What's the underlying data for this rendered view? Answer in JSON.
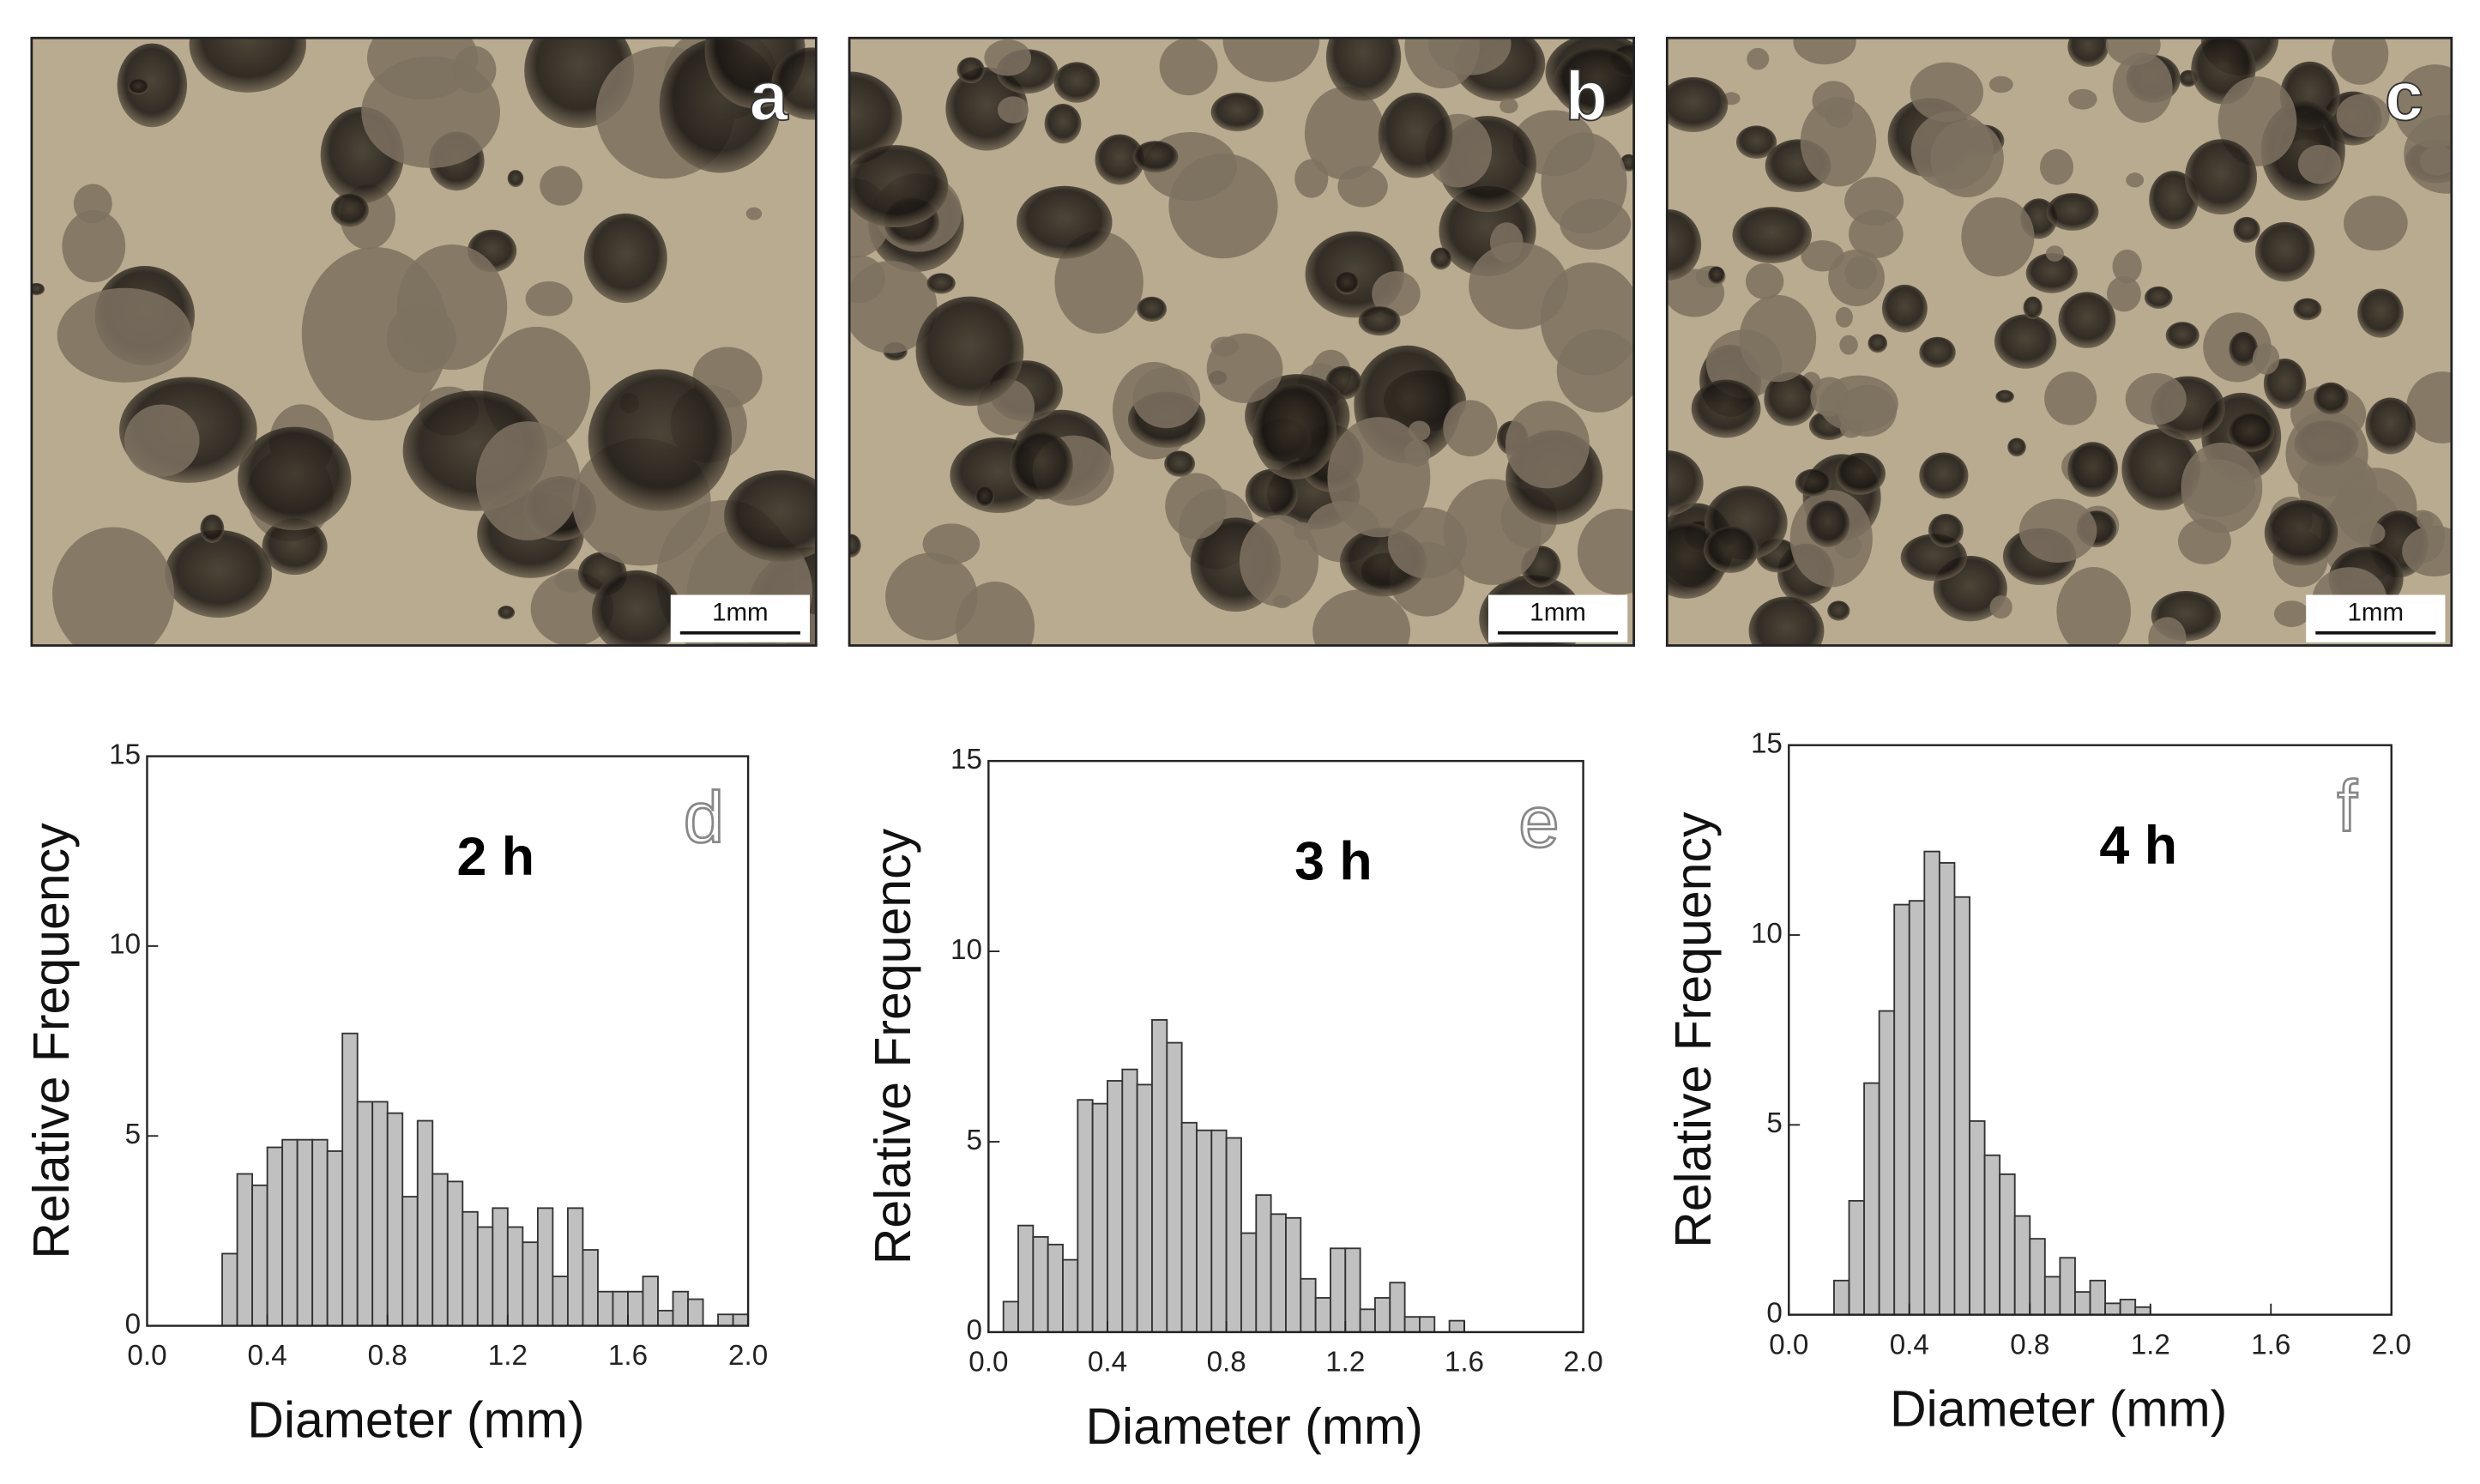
{
  "photos": [
    {
      "label": "a",
      "scale_bar": "1mm"
    },
    {
      "label": "b",
      "scale_bar": "1mm"
    },
    {
      "label": "c",
      "scale_bar": "1mm"
    }
  ],
  "chart_data": [
    {
      "type": "histogram",
      "panel": "d",
      "annotation": "2 h",
      "xlabel": "Diameter (mm)",
      "ylabel": "Relative Frequency",
      "color": "#c0c0c0",
      "bins": [
        0.25,
        0.3,
        0.35,
        0.4,
        0.45,
        0.5,
        0.55,
        0.6,
        0.65,
        0.7,
        0.75,
        0.8,
        0.85,
        0.9,
        0.95,
        1.0,
        1.05,
        1.1,
        1.15,
        1.2,
        1.25,
        1.3,
        1.35,
        1.4,
        1.45,
        1.5,
        1.55,
        1.6,
        1.65,
        1.7,
        1.75,
        1.8,
        1.85,
        1.9,
        1.95,
        2.0
      ],
      "values": [
        1.9,
        4.0,
        3.7,
        4.7,
        4.9,
        4.9,
        4.9,
        4.6,
        7.7,
        5.9,
        5.9,
        5.6,
        3.4,
        5.4,
        4.0,
        3.8,
        3.0,
        2.6,
        3.1,
        2.6,
        2.2,
        3.1,
        1.3,
        3.1,
        2.0,
        0.9,
        0.9,
        0.9,
        1.3,
        0.4,
        0.9,
        0.7,
        0,
        0.3,
        0.3
      ],
      "xlim": [
        0,
        2
      ],
      "xticks": [
        {
          "value": 0,
          "label": "0.0"
        },
        0.4,
        0.8,
        1.2,
        1.6,
        {
          "value": 2,
          "label": "2.0"
        }
      ],
      "ylim": [
        0,
        15
      ],
      "yticks": [
        0,
        5,
        10,
        15
      ]
    },
    {
      "type": "histogram",
      "panel": "e",
      "annotation": "3 h",
      "xlabel": "Diameter (mm)",
      "ylabel": "Relative Frequency",
      "color": "#c0c0c0",
      "bins": [
        0.05,
        0.1,
        0.15,
        0.2,
        0.25,
        0.3,
        0.35,
        0.4,
        0.45,
        0.5,
        0.55,
        0.6,
        0.65,
        0.7,
        0.75,
        0.8,
        0.85,
        0.9,
        0.95,
        1.0,
        1.05,
        1.1,
        1.15,
        1.2,
        1.25,
        1.3,
        1.35,
        1.4,
        1.45,
        1.5,
        1.55,
        1.6
      ],
      "values": [
        0.8,
        2.8,
        2.5,
        2.3,
        1.9,
        6.1,
        6.0,
        6.6,
        6.9,
        6.5,
        8.2,
        7.6,
        5.5,
        5.3,
        5.3,
        5.1,
        2.6,
        3.6,
        3.1,
        3.0,
        1.4,
        0.9,
        2.2,
        2.2,
        0.6,
        0.9,
        1.3,
        0.4,
        0.4,
        0,
        0.3
      ],
      "xlim": [
        0,
        2
      ],
      "xticks": [
        {
          "value": 0,
          "label": "0.0"
        },
        0.4,
        0.8,
        1.2,
        1.6,
        {
          "value": 2,
          "label": "2.0"
        }
      ],
      "ylim": [
        0,
        15
      ],
      "yticks": [
        0,
        5,
        10,
        15
      ]
    },
    {
      "type": "histogram",
      "panel": "f",
      "annotation": "4 h",
      "xlabel": "Diameter (mm)",
      "ylabel": "Relative Frequency",
      "color": "#c0c0c0",
      "bins": [
        0.15,
        0.2,
        0.25,
        0.3,
        0.35,
        0.4,
        0.45,
        0.5,
        0.55,
        0.6,
        0.65,
        0.7,
        0.75,
        0.8,
        0.85,
        0.9,
        0.95,
        1.0,
        1.05,
        1.1,
        1.15,
        1.2
      ],
      "values": [
        0.9,
        3.0,
        6.1,
        8.0,
        10.8,
        10.9,
        12.2,
        11.9,
        11.0,
        5.1,
        4.2,
        3.7,
        2.6,
        2.0,
        1.0,
        1.5,
        0.6,
        0.9,
        0.3,
        0.4,
        0.2
      ],
      "xlim": [
        0,
        2
      ],
      "xticks": [
        {
          "value": 0,
          "label": "0.0"
        },
        0.4,
        0.8,
        1.2,
        1.6,
        {
          "value": 2,
          "label": "2.0"
        }
      ],
      "ylim": [
        0,
        15
      ],
      "yticks": [
        0,
        5,
        10,
        15
      ]
    }
  ]
}
